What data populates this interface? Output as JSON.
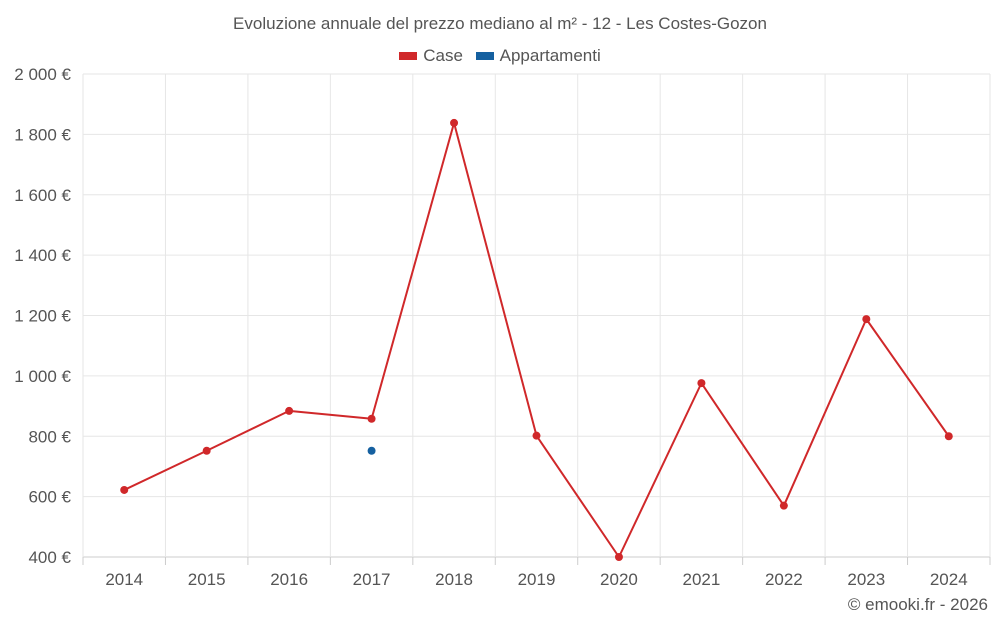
{
  "chart_data": {
    "type": "line",
    "title": "Evoluzione annuale del prezzo mediano al m² - 12 - Les Costes-Gozon",
    "x": [
      "2014",
      "2015",
      "2016",
      "2017",
      "2018",
      "2019",
      "2020",
      "2021",
      "2022",
      "2023",
      "2024"
    ],
    "y_tick_labels": [
      "400 €",
      "600 €",
      "800 €",
      "1 000 €",
      "1 200 €",
      "1 400 €",
      "1 600 €",
      "1 800 €",
      "2 000 €"
    ],
    "y_ticks": [
      400,
      600,
      800,
      1000,
      1200,
      1400,
      1600,
      1800,
      2000
    ],
    "ylim": [
      400,
      2000
    ],
    "grid": true,
    "legend_position": "top-center",
    "series": [
      {
        "name": "Case",
        "color": "#d0282a",
        "values": [
          622,
          752,
          884,
          858,
          1838,
          802,
          400,
          976,
          570,
          1188,
          800
        ]
      },
      {
        "name": "Appartamenti",
        "color": "#1560a0",
        "values": [
          null,
          null,
          null,
          752,
          null,
          null,
          null,
          null,
          null,
          null,
          null
        ]
      }
    ]
  },
  "credit": "© emooki.fr - 2026"
}
